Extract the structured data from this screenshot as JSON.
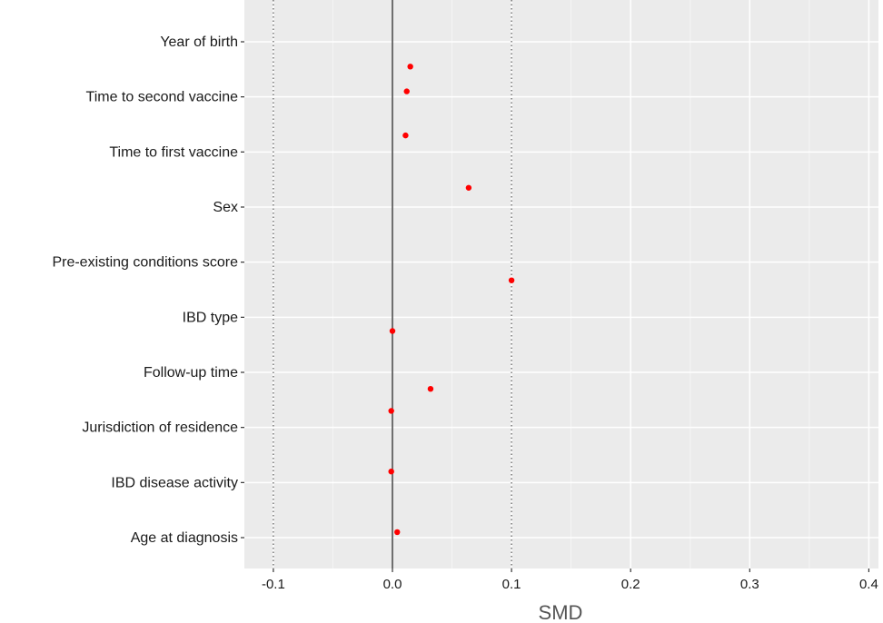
{
  "chart_data": {
    "type": "scatter",
    "title": "",
    "xlabel": "SMD",
    "ylabel": "",
    "xlim": [
      -0.1,
      0.4
    ],
    "xticks": [
      -0.1,
      0.0,
      0.1,
      0.2,
      0.3,
      0.4
    ],
    "xtick_labels": [
      "-0.1",
      "0.0",
      "0.1",
      "0.2",
      "0.3",
      "0.4"
    ],
    "reference_line": 0.0,
    "threshold_lines": [
      -0.1,
      0.1
    ],
    "grid": true,
    "point_color": "#ff0000",
    "panel_color": "#ebebeb",
    "categories": [
      "Year of birth",
      "Time to second vaccine",
      "Time to first vaccine",
      "Sex",
      "Pre-existing conditions score",
      "IBD type",
      "Follow-up time",
      "Jurisdiction of residence",
      "IBD disease activity",
      "Age at diagnosis"
    ],
    "points": [
      {
        "category": "Year of birth",
        "x": 0.015,
        "offset": 0.45
      },
      {
        "category": "Time to second vaccine",
        "x": 0.012,
        "offset": -0.1
      },
      {
        "category": "Time to first vaccine",
        "x": 0.011,
        "offset": -0.3
      },
      {
        "category": "Sex",
        "x": 0.064,
        "offset": -0.35
      },
      {
        "category": "Pre-existing conditions score",
        "x": 0.1,
        "offset": 0.33
      },
      {
        "category": "IBD type",
        "x": 0.0,
        "offset": 0.25
      },
      {
        "category": "Follow-up time",
        "x": 0.032,
        "offset": 0.3
      },
      {
        "category": "Jurisdiction of residence",
        "x": -0.001,
        "offset": -0.3
      },
      {
        "category": "IBD disease activity",
        "x": -0.001,
        "offset": -0.2
      },
      {
        "category": "Age at diagnosis",
        "x": 0.004,
        "offset": -0.1
      }
    ]
  }
}
